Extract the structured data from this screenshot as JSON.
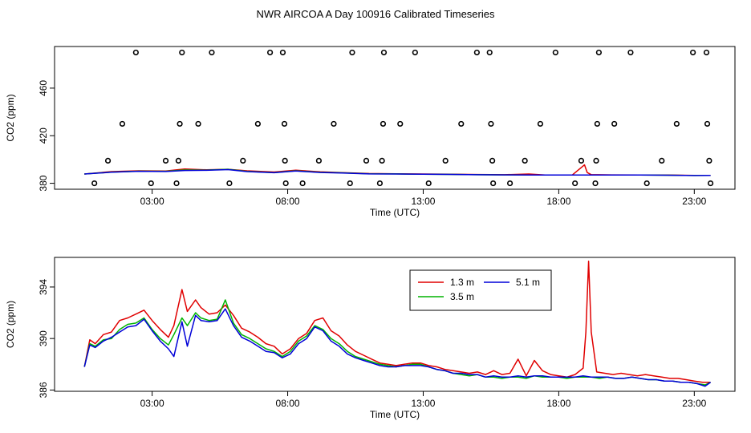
{
  "title": "NWR AIRCOA A  Day 100916  Calibrated Timeseries",
  "colors": {
    "s1": "#e00000",
    "s2": "#00b400",
    "s3": "#0000d8",
    "marker": "#000000"
  },
  "chart_data": [
    {
      "type": "scatter+line",
      "id": "top",
      "xlabel": "Time (UTC)",
      "ylabel": "CO2 (ppm)",
      "xlim": [
        -0.6,
        24.5
      ],
      "ylim": [
        375,
        495
      ],
      "xticks": [
        3,
        8,
        13,
        18,
        23
      ],
      "xtick_labels": [
        "03:00",
        "08:00",
        "13:00",
        "18:00",
        "23:00"
      ],
      "yticks": [
        380,
        420,
        460
      ],
      "ytick_labels": [
        "380",
        "420",
        "460"
      ],
      "markers": [
        [
          0.87,
          380
        ],
        [
          1.37,
          399
        ],
        [
          1.9,
          430
        ],
        [
          2.4,
          490
        ],
        [
          2.96,
          380
        ],
        [
          3.5,
          399
        ],
        [
          3.9,
          380
        ],
        [
          3.97,
          399
        ],
        [
          4.02,
          430
        ],
        [
          4.1,
          490
        ],
        [
          4.7,
          430
        ],
        [
          5.2,
          490
        ],
        [
          5.85,
          380
        ],
        [
          6.35,
          399
        ],
        [
          6.9,
          430
        ],
        [
          7.35,
          490
        ],
        [
          7.82,
          490
        ],
        [
          7.88,
          430
        ],
        [
          7.9,
          399
        ],
        [
          7.93,
          380
        ],
        [
          8.55,
          380
        ],
        [
          9.15,
          399
        ],
        [
          9.7,
          430
        ],
        [
          10.3,
          380
        ],
        [
          10.38,
          490
        ],
        [
          10.9,
          399
        ],
        [
          11.4,
          380
        ],
        [
          11.48,
          399
        ],
        [
          11.52,
          430
        ],
        [
          11.55,
          490
        ],
        [
          12.15,
          430
        ],
        [
          12.7,
          490
        ],
        [
          13.2,
          380
        ],
        [
          13.82,
          399
        ],
        [
          14.4,
          430
        ],
        [
          14.98,
          490
        ],
        [
          15.45,
          490
        ],
        [
          15.5,
          430
        ],
        [
          15.55,
          399
        ],
        [
          15.58,
          380
        ],
        [
          16.2,
          380
        ],
        [
          16.75,
          399
        ],
        [
          17.32,
          430
        ],
        [
          17.88,
          490
        ],
        [
          18.6,
          380
        ],
        [
          18.83,
          399
        ],
        [
          19.35,
          380
        ],
        [
          19.38,
          399
        ],
        [
          19.42,
          430
        ],
        [
          19.48,
          490
        ],
        [
          20.05,
          430
        ],
        [
          20.65,
          490
        ],
        [
          21.25,
          380
        ],
        [
          21.8,
          399
        ],
        [
          22.35,
          430
        ],
        [
          22.95,
          490
        ],
        [
          23.45,
          490
        ],
        [
          23.48,
          430
        ],
        [
          23.55,
          399
        ],
        [
          23.6,
          380
        ]
      ],
      "series": [
        {
          "name": "1.3 m",
          "color": "s1",
          "x": [
            0.5,
            1.5,
            2.5,
            3.5,
            4.2,
            5.0,
            5.8,
            6.5,
            7.5,
            8.3,
            9.2,
            10.0,
            11.0,
            12.0,
            13.0,
            14.0,
            15.0,
            16.0,
            16.9,
            17.5,
            18.5,
            18.95,
            19.05,
            19.2,
            20.0,
            21.0,
            22.0,
            23.0,
            23.6
          ],
          "y": [
            387.8,
            389.8,
            390.5,
            390.3,
            392.0,
            391.3,
            391.8,
            390.5,
            389.5,
            391.0,
            389.6,
            389.0,
            388.2,
            388.0,
            387.8,
            387.7,
            387.4,
            387.2,
            387.8,
            387.0,
            387.0,
            395.5,
            389.0,
            387.3,
            387.1,
            387.0,
            386.9,
            386.6,
            386.6
          ]
        },
        {
          "name": "3.5 m",
          "color": "s2",
          "x": [
            0.5,
            1.5,
            2.5,
            3.5,
            4.2,
            5.0,
            5.8,
            6.5,
            7.5,
            8.3,
            9.2,
            10.0,
            11.0,
            12.0,
            13.0,
            14.0,
            15.0,
            16.0,
            17.0,
            18.0,
            19.0,
            20.0,
            21.0,
            22.0,
            23.0,
            23.6
          ],
          "y": [
            387.8,
            389.4,
            390.2,
            390.1,
            391.2,
            391.1,
            391.8,
            390.0,
            389.0,
            390.5,
            389.2,
            388.8,
            388.0,
            387.9,
            387.6,
            387.5,
            387.2,
            387.1,
            387.0,
            386.9,
            386.9,
            387.0,
            386.9,
            386.8,
            386.5,
            386.6
          ]
        },
        {
          "name": "5.1 m",
          "color": "s3",
          "x": [
            0.5,
            1.5,
            2.5,
            3.5,
            4.2,
            5.0,
            5.8,
            6.5,
            7.5,
            8.3,
            9.2,
            10.0,
            11.0,
            12.0,
            13.0,
            14.0,
            15.0,
            16.0,
            17.0,
            18.0,
            19.0,
            20.0,
            21.0,
            22.0,
            23.0,
            23.6
          ],
          "y": [
            387.8,
            389.3,
            390.1,
            389.9,
            390.8,
            390.9,
            391.5,
            389.8,
            388.9,
            390.3,
            389.1,
            388.7,
            387.9,
            387.8,
            387.6,
            387.5,
            387.2,
            387.1,
            387.0,
            387.0,
            387.0,
            386.9,
            386.9,
            386.8,
            386.5,
            386.6
          ]
        }
      ]
    },
    {
      "type": "line",
      "id": "bottom",
      "xlabel": "Time (UTC)",
      "ylabel": "CO2 (ppm)",
      "xlim": [
        -0.6,
        24.5
      ],
      "ylim": [
        385.9,
        396.3
      ],
      "xticks": [
        3,
        8,
        13,
        18,
        23
      ],
      "xtick_labels": [
        "03:00",
        "08:00",
        "13:00",
        "18:00",
        "23:00"
      ],
      "yticks": [
        386,
        390,
        394
      ],
      "ytick_labels": [
        "386",
        "390",
        "394"
      ],
      "legend": {
        "position": "top-right",
        "entries": [
          "1.3 m",
          "5.1 m",
          "3.5 m"
        ]
      },
      "series": [
        {
          "name": "1.3 m",
          "color": "s1",
          "x": [
            0.5,
            0.7,
            0.9,
            1.2,
            1.5,
            1.8,
            2.1,
            2.4,
            2.7,
            3.0,
            3.3,
            3.6,
            3.8,
            4.1,
            4.3,
            4.6,
            4.8,
            5.1,
            5.4,
            5.7,
            6.0,
            6.3,
            6.6,
            6.9,
            7.2,
            7.5,
            7.8,
            8.1,
            8.4,
            8.7,
            9.0,
            9.3,
            9.6,
            9.9,
            10.2,
            10.5,
            10.8,
            11.1,
            11.4,
            11.7,
            12.0,
            12.3,
            12.6,
            12.9,
            13.2,
            13.5,
            13.8,
            14.1,
            14.4,
            14.7,
            15.0,
            15.3,
            15.6,
            15.9,
            16.2,
            16.5,
            16.8,
            17.1,
            17.4,
            17.7,
            18.0,
            18.3,
            18.6,
            18.9,
            19.0,
            19.1,
            19.2,
            19.4,
            19.7,
            20.0,
            20.3,
            20.6,
            20.9,
            21.2,
            21.5,
            21.8,
            22.1,
            22.4,
            22.7,
            23.0,
            23.3,
            23.6
          ],
          "y": [
            387.8,
            389.9,
            389.6,
            390.3,
            390.5,
            391.4,
            391.6,
            391.9,
            392.2,
            391.4,
            390.7,
            390.1,
            391.0,
            393.8,
            392.1,
            393.0,
            392.4,
            391.9,
            392.0,
            392.6,
            391.8,
            390.8,
            390.5,
            390.1,
            389.6,
            389.4,
            388.8,
            389.2,
            390.0,
            390.4,
            391.4,
            391.6,
            390.6,
            390.2,
            389.5,
            389.0,
            388.7,
            388.4,
            388.1,
            388.0,
            387.9,
            388.0,
            388.1,
            388.1,
            387.9,
            387.8,
            387.6,
            387.5,
            387.4,
            387.3,
            387.4,
            387.2,
            387.5,
            387.2,
            387.3,
            388.4,
            387.1,
            388.3,
            387.5,
            387.2,
            387.1,
            387.0,
            387.2,
            387.7,
            390.5,
            396.0,
            390.5,
            387.4,
            387.3,
            387.2,
            387.3,
            387.2,
            387.1,
            387.2,
            387.1,
            387.0,
            386.9,
            386.9,
            386.8,
            386.7,
            386.6,
            386.6
          ]
        },
        {
          "name": "3.5 m",
          "color": "s2",
          "x": [
            0.5,
            0.7,
            0.9,
            1.2,
            1.5,
            1.8,
            2.1,
            2.4,
            2.7,
            3.0,
            3.3,
            3.6,
            3.8,
            4.1,
            4.3,
            4.6,
            4.8,
            5.1,
            5.4,
            5.7,
            6.0,
            6.3,
            6.6,
            6.9,
            7.2,
            7.5,
            7.8,
            8.1,
            8.4,
            8.7,
            9.0,
            9.3,
            9.6,
            9.9,
            10.2,
            10.5,
            10.8,
            11.1,
            11.4,
            11.7,
            12.0,
            12.3,
            12.6,
            12.9,
            13.2,
            13.5,
            13.8,
            14.1,
            14.4,
            14.7,
            15.0,
            15.3,
            15.6,
            15.9,
            16.2,
            16.5,
            16.8,
            17.1,
            17.4,
            17.7,
            18.0,
            18.3,
            18.6,
            18.9,
            19.2,
            19.5,
            19.8,
            20.1,
            20.4,
            20.7,
            21.0,
            21.3,
            21.6,
            21.9,
            22.2,
            22.5,
            22.8,
            23.1,
            23.4,
            23.6
          ],
          "y": [
            387.8,
            389.6,
            389.4,
            389.9,
            390.0,
            390.7,
            391.1,
            391.2,
            391.6,
            390.7,
            390.0,
            389.5,
            390.3,
            391.6,
            391.0,
            392.0,
            391.6,
            391.4,
            391.5,
            393.0,
            391.2,
            390.3,
            390.0,
            389.6,
            389.2,
            389.0,
            388.6,
            389.0,
            389.8,
            390.2,
            391.0,
            390.7,
            390.0,
            389.6,
            389.0,
            388.6,
            388.4,
            388.2,
            388.0,
            387.9,
            387.8,
            387.9,
            388.0,
            388.0,
            387.8,
            387.6,
            387.5,
            387.3,
            387.2,
            387.1,
            387.2,
            387.0,
            387.0,
            386.9,
            387.0,
            387.0,
            386.9,
            387.1,
            387.0,
            387.0,
            387.0,
            386.9,
            387.0,
            387.0,
            387.0,
            386.9,
            387.0,
            386.9,
            386.9,
            387.0,
            386.9,
            386.8,
            386.8,
            386.7,
            386.7,
            386.6,
            386.6,
            386.5,
            386.4,
            386.6
          ]
        },
        {
          "name": "5.1 m",
          "color": "s3",
          "x": [
            0.5,
            0.7,
            0.9,
            1.2,
            1.5,
            1.8,
            2.1,
            2.4,
            2.7,
            3.0,
            3.3,
            3.6,
            3.8,
            4.1,
            4.3,
            4.6,
            4.8,
            5.1,
            5.4,
            5.7,
            6.0,
            6.3,
            6.6,
            6.9,
            7.2,
            7.5,
            7.8,
            8.1,
            8.4,
            8.7,
            9.0,
            9.3,
            9.6,
            9.9,
            10.2,
            10.5,
            10.8,
            11.1,
            11.4,
            11.7,
            12.0,
            12.3,
            12.6,
            12.9,
            13.2,
            13.5,
            13.8,
            14.1,
            14.4,
            14.7,
            15.0,
            15.3,
            15.6,
            15.9,
            16.2,
            16.5,
            16.8,
            17.1,
            17.4,
            17.7,
            18.0,
            18.3,
            18.6,
            18.9,
            19.2,
            19.5,
            19.8,
            20.1,
            20.4,
            20.7,
            21.0,
            21.3,
            21.6,
            21.9,
            22.2,
            22.5,
            22.8,
            23.1,
            23.4,
            23.6
          ],
          "y": [
            387.8,
            389.5,
            389.3,
            389.8,
            390.1,
            390.5,
            390.9,
            391.0,
            391.5,
            390.6,
            389.8,
            389.2,
            388.6,
            391.3,
            389.4,
            391.8,
            391.4,
            391.3,
            391.4,
            392.3,
            391.0,
            390.1,
            389.8,
            389.4,
            389.0,
            388.9,
            388.5,
            388.8,
            389.6,
            390.0,
            390.9,
            390.6,
            389.8,
            389.4,
            388.8,
            388.5,
            388.3,
            388.1,
            387.9,
            387.8,
            387.8,
            387.9,
            387.9,
            387.9,
            387.8,
            387.6,
            387.5,
            387.3,
            387.3,
            387.2,
            387.2,
            387.0,
            387.1,
            387.0,
            387.0,
            387.1,
            387.0,
            387.1,
            387.1,
            387.0,
            387.0,
            387.0,
            387.0,
            387.1,
            387.0,
            387.0,
            387.0,
            386.9,
            386.9,
            387.0,
            386.9,
            386.8,
            386.8,
            386.7,
            386.7,
            386.6,
            386.6,
            386.5,
            386.3,
            386.6
          ]
        }
      ]
    }
  ]
}
